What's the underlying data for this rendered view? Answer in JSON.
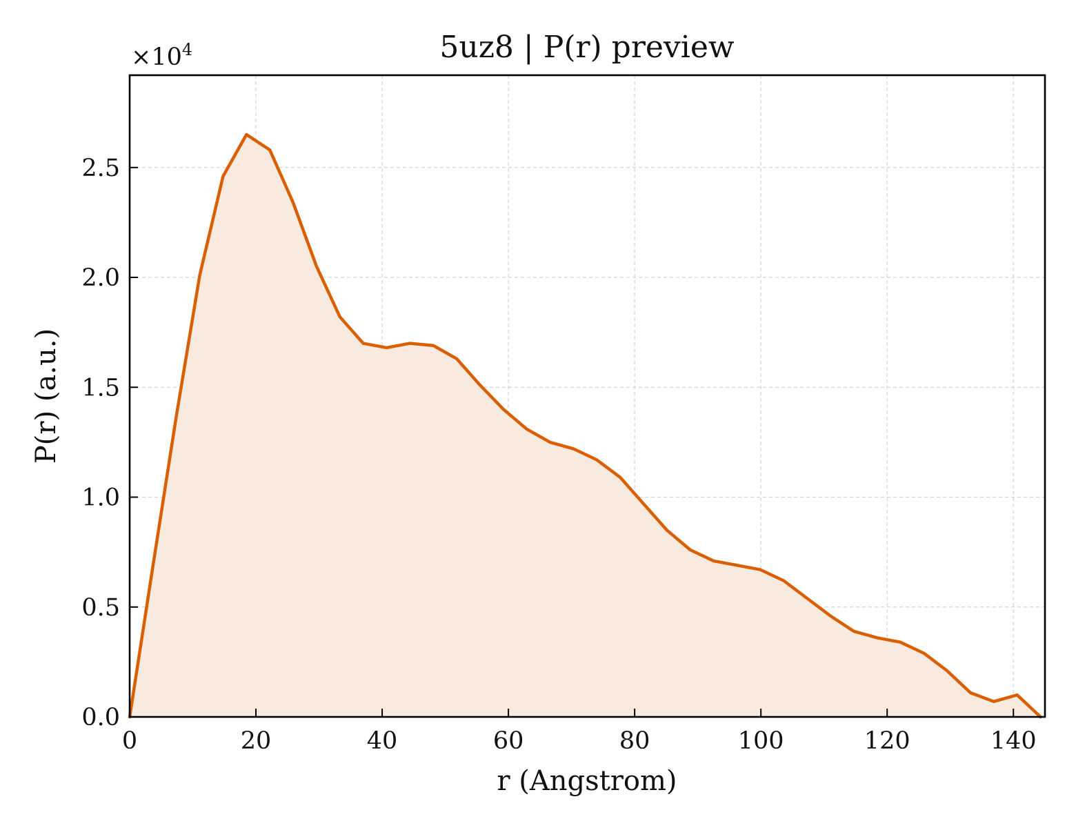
{
  "chart_data": {
    "type": "area",
    "title": "5uz8 | P(r) preview",
    "xlabel": "r (Angstrom)",
    "ylabel": "P(r) (a.u.)",
    "y_scale_label": "×10",
    "y_scale_exponent": "4",
    "xlim": [
      0,
      145
    ],
    "ylim": [
      0,
      2.92
    ],
    "x_ticks": [
      0,
      20,
      40,
      60,
      80,
      100,
      120,
      140
    ],
    "x_tick_labels": [
      "0",
      "20",
      "40",
      "60",
      "80",
      "100",
      "120",
      "140"
    ],
    "y_ticks": [
      0,
      0.5,
      1.0,
      1.5,
      2.0,
      2.5
    ],
    "y_tick_labels": [
      "0.0",
      "0.5",
      "1.0",
      "1.5",
      "2.0",
      "2.5"
    ],
    "grid": true,
    "line_color": "#d95f02",
    "fill_color": "#f9eadf",
    "series": [
      {
        "x": [
          0,
          3.7,
          7.4,
          11.1,
          14.8,
          18.5,
          22.2,
          25.9,
          29.6,
          33.3,
          37.0,
          40.7,
          44.4,
          48.1,
          51.8,
          55.5,
          59.2,
          62.9,
          66.6,
          70.3,
          74.0,
          77.7,
          81.4,
          85.1,
          88.8,
          92.5,
          96.2,
          99.9,
          103.6,
          107.3,
          111.0,
          114.7,
          118.4,
          122.1,
          125.8,
          129.5,
          133.2,
          136.9,
          140.6,
          144.3
        ],
        "y": [
          0,
          0.69,
          1.37,
          2.01,
          2.46,
          2.65,
          2.58,
          2.34,
          2.05,
          1.82,
          1.7,
          1.68,
          1.7,
          1.69,
          1.63,
          1.51,
          1.4,
          1.31,
          1.25,
          1.22,
          1.17,
          1.09,
          0.97,
          0.85,
          0.76,
          0.71,
          0.69,
          0.67,
          0.62,
          0.54,
          0.46,
          0.39,
          0.36,
          0.34,
          0.29,
          0.21,
          0.11,
          0.07,
          0.1,
          0.0
        ]
      }
    ]
  }
}
